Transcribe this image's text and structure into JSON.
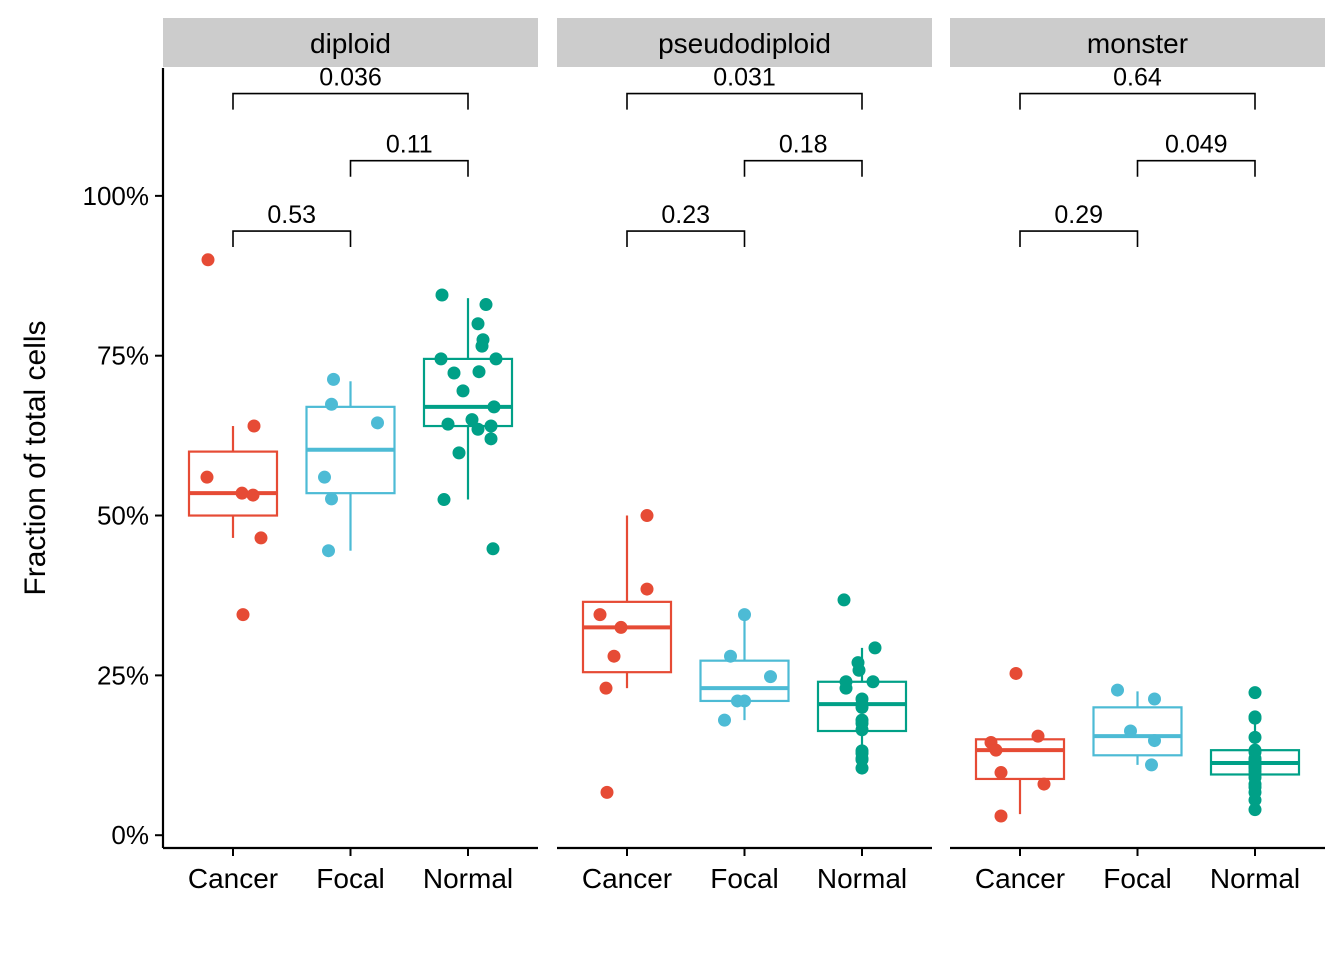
{
  "chart_data": {
    "type": "boxplot",
    "ylabel": "Fraction of total cells",
    "xlabel": "",
    "yticks": [
      "0%",
      "25%",
      "50%",
      "75%",
      "100%"
    ],
    "ytick_values": [
      0,
      0.25,
      0.5,
      0.75,
      1.0
    ],
    "ylim": [
      -0.02,
      1.2
    ],
    "categories": [
      "Cancer",
      "Focal",
      "Normal"
    ],
    "colors": {
      "Cancer": "#e64b35",
      "Focal": "#4dbbd5",
      "Normal": "#00a087"
    },
    "panel_strip_color": "#cccccc",
    "panels": [
      {
        "name": "diploid",
        "boxes": [
          {
            "category": "Cancer",
            "q1": 0.5,
            "median": 0.535,
            "q3": 0.6,
            "lower": 0.465,
            "upper": 0.64
          },
          {
            "category": "Focal",
            "q1": 0.535,
            "median": 0.603,
            "q3": 0.67,
            "lower": 0.445,
            "upper": 0.71
          },
          {
            "category": "Normal",
            "q1": 0.64,
            "median": 0.67,
            "q3": 0.745,
            "lower": 0.525,
            "upper": 0.84
          }
        ],
        "points": [
          {
            "category": "Cancer",
            "values": [
              0.9,
              0.64,
              0.56,
              0.535,
              0.532,
              0.465,
              0.345
            ]
          },
          {
            "category": "Focal",
            "values": [
              0.713,
              0.674,
              0.645,
              0.56,
              0.526,
              0.445
            ]
          },
          {
            "category": "Normal",
            "values": [
              0.845,
              0.83,
              0.8,
              0.775,
              0.765,
              0.745,
              0.745,
              0.725,
              0.723,
              0.695,
              0.67,
              0.65,
              0.643,
              0.64,
              0.635,
              0.62,
              0.598,
              0.525,
              0.448
            ]
          }
        ],
        "comparisons": [
          {
            "from": "Cancer",
            "to": "Focal",
            "p": "0.53",
            "level": 0.945
          },
          {
            "from": "Focal",
            "to": "Normal",
            "p": "0.11",
            "level": 1.055
          },
          {
            "from": "Cancer",
            "to": "Normal",
            "p": "0.036",
            "level": 1.16
          }
        ]
      },
      {
        "name": "pseudodiploid",
        "boxes": [
          {
            "category": "Cancer",
            "q1": 0.255,
            "median": 0.325,
            "q3": 0.365,
            "lower": 0.23,
            "upper": 0.5
          },
          {
            "category": "Focal",
            "q1": 0.21,
            "median": 0.23,
            "q3": 0.273,
            "lower": 0.18,
            "upper": 0.345
          },
          {
            "category": "Normal",
            "q1": 0.163,
            "median": 0.205,
            "q3": 0.24,
            "lower": 0.103,
            "upper": 0.293
          }
        ],
        "points": [
          {
            "category": "Cancer",
            "values": [
              0.5,
              0.385,
              0.345,
              0.325,
              0.28,
              0.23,
              0.067
            ]
          },
          {
            "category": "Focal",
            "values": [
              0.345,
              0.28,
              0.248,
              0.21,
              0.21,
              0.18
            ]
          },
          {
            "category": "Normal",
            "values": [
              0.368,
              0.293,
              0.27,
              0.258,
              0.24,
              0.24,
              0.23,
              0.213,
              0.205,
              0.2,
              0.18,
              0.175,
              0.165,
              0.132,
              0.128,
              0.12,
              0.118,
              0.105
            ]
          }
        ],
        "comparisons": [
          {
            "from": "Cancer",
            "to": "Focal",
            "p": "0.23",
            "level": 0.945
          },
          {
            "from": "Focal",
            "to": "Normal",
            "p": "0.18",
            "level": 1.055
          },
          {
            "from": "Cancer",
            "to": "Normal",
            "p": "0.031",
            "level": 1.16
          }
        ]
      },
      {
        "name": "monster",
        "boxes": [
          {
            "category": "Cancer",
            "q1": 0.088,
            "median": 0.133,
            "q3": 0.15,
            "lower": 0.033,
            "upper": 0.15
          },
          {
            "category": "Focal",
            "q1": 0.125,
            "median": 0.155,
            "q3": 0.2,
            "lower": 0.11,
            "upper": 0.225
          },
          {
            "category": "Normal",
            "q1": 0.095,
            "median": 0.113,
            "q3": 0.133,
            "lower": 0.052,
            "upper": 0.183
          }
        ],
        "points": [
          {
            "category": "Cancer",
            "values": [
              0.253,
              0.155,
              0.145,
              0.133,
              0.098,
              0.08,
              0.03
            ]
          },
          {
            "category": "Focal",
            "values": [
              0.227,
              0.213,
              0.163,
              0.148,
              0.11
            ]
          },
          {
            "category": "Normal",
            "values": [
              0.223,
              0.185,
              0.183,
              0.153,
              0.133,
              0.13,
              0.12,
              0.118,
              0.113,
              0.11,
              0.108,
              0.105,
              0.1,
              0.095,
              0.09,
              0.08,
              0.075,
              0.067,
              0.055,
              0.04
            ]
          }
        ],
        "comparisons": [
          {
            "from": "Cancer",
            "to": "Focal",
            "p": "0.29",
            "level": 0.945
          },
          {
            "from": "Focal",
            "to": "Normal",
            "p": "0.049",
            "level": 1.055
          },
          {
            "from": "Cancer",
            "to": "Normal",
            "p": "0.64",
            "level": 1.16
          }
        ]
      }
    ]
  }
}
